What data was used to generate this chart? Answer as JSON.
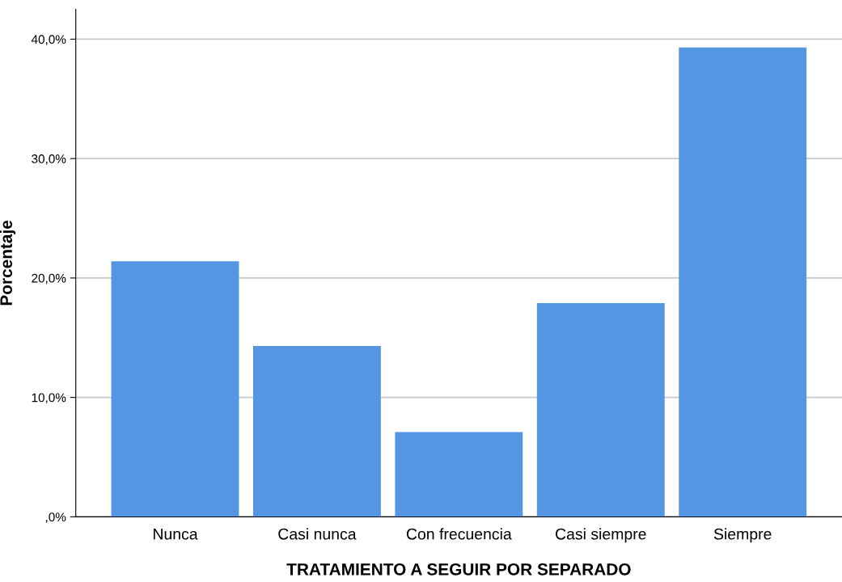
{
  "chart_data": {
    "type": "bar",
    "xlabel": "TRATAMIENTO A SEGUIR POR SEPARADO",
    "ylabel": "Porcentaje",
    "categories": [
      "Nunca",
      "Casi nunca",
      "Con frecuencia",
      "Casi siempre",
      "Siempre"
    ],
    "values": [
      21.4,
      14.3,
      7.1,
      17.9,
      39.3
    ],
    "color": "#5596e3",
    "ylim": [
      0,
      42.5
    ],
    "yticks": [
      {
        "value": 0,
        "label": ",0%"
      },
      {
        "value": 10,
        "label": "10,0%"
      },
      {
        "value": 20,
        "label": "20,0%"
      },
      {
        "value": 30,
        "label": "30,0%"
      },
      {
        "value": 40,
        "label": "40,0%"
      }
    ],
    "grid": "y"
  }
}
